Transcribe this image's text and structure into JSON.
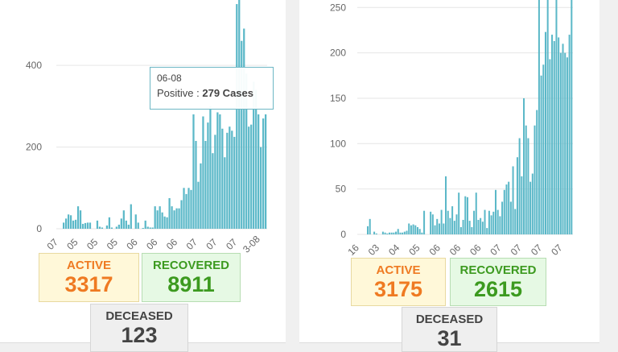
{
  "chart_data": [
    {
      "type": "bar",
      "ylim": [
        0,
        560
      ],
      "yticks": [
        0,
        200,
        400
      ],
      "xtick_labels": [
        "07",
        "05",
        "05",
        "05",
        "06",
        "06",
        "06",
        "07",
        "07",
        "07",
        "3-08"
      ],
      "color": "#5bb8c8",
      "values": [
        15,
        25,
        35,
        33,
        20,
        22,
        55,
        45,
        12,
        14,
        15,
        15,
        0,
        0,
        20,
        5,
        3,
        0,
        8,
        28,
        3,
        0,
        5,
        10,
        25,
        45,
        20,
        10,
        60,
        0,
        35,
        15,
        0,
        2,
        20,
        5,
        3,
        3,
        55,
        45,
        55,
        40,
        30,
        28,
        75,
        55,
        45,
        50,
        50,
        70,
        100,
        85,
        100,
        95,
        280,
        215,
        115,
        160,
        275,
        215,
        260,
        300,
        185,
        230,
        285,
        280,
        245,
        175,
        235,
        250,
        240,
        225,
        550,
        560,
        460,
        490,
        380,
        250,
        255,
        360,
        340,
        280,
        200,
        270,
        280
      ],
      "tooltip": {
        "date": "06-08",
        "label": "Positive :",
        "value": "279 Cases"
      }
    },
    {
      "type": "bar",
      "ylim": [
        0,
        260
      ],
      "yticks": [
        0,
        50,
        100,
        150,
        200,
        250
      ],
      "xtick_labels": [
        "16",
        "03",
        "04",
        "05",
        "06",
        "06",
        "06",
        "07",
        "07",
        "07",
        "07"
      ],
      "color": "#5bb8c8",
      "values": [
        9,
        17,
        0,
        3,
        1,
        0,
        0,
        3,
        2,
        1,
        2,
        2,
        2,
        3,
        6,
        2,
        2,
        3,
        4,
        12,
        10,
        11,
        10,
        8,
        6,
        2,
        26,
        0,
        0,
        25,
        22,
        10,
        17,
        12,
        27,
        12,
        64,
        26,
        18,
        31,
        15,
        22,
        46,
        8,
        16,
        42,
        41,
        15,
        8,
        26,
        46,
        16,
        18,
        14,
        27,
        7,
        26,
        21,
        25,
        49,
        27,
        20,
        36,
        49,
        55,
        58,
        36,
        75,
        28,
        85,
        106,
        64,
        150,
        120,
        106,
        58,
        67,
        120,
        137,
        260,
        175,
        187,
        223,
        260,
        193,
        220,
        213,
        260,
        217,
        200,
        210,
        200,
        195,
        220,
        260
      ]
    }
  ],
  "stats": [
    {
      "active_label": "ACTIVE",
      "active": "3317",
      "recovered_label": "RECOVERED",
      "recovered": "8911",
      "deceased_label": "DECEASED",
      "deceased": "123"
    },
    {
      "active_label": "ACTIVE",
      "active": "3175",
      "recovered_label": "RECOVERED",
      "recovered": "2615",
      "deceased_label": "DECEASED",
      "deceased": "31"
    }
  ]
}
